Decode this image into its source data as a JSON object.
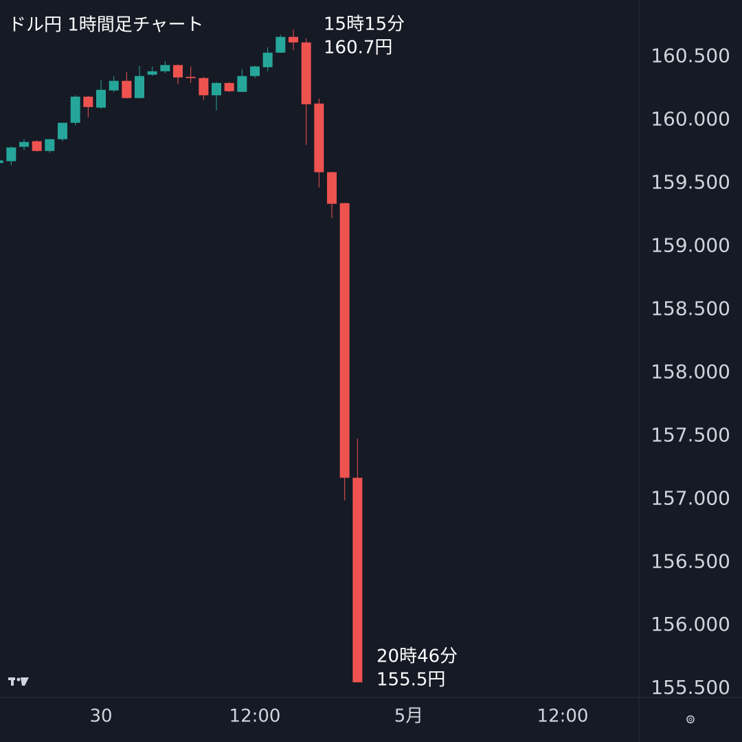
{
  "chart_data": {
    "type": "candlestick",
    "title": "ドル円 1時間足チャート",
    "categories": [
      null,
      null,
      null,
      null,
      null,
      null,
      null,
      null,
      "30",
      null,
      null,
      null,
      null,
      null,
      null,
      null,
      null,
      null,
      null,
      null,
      "12:00",
      null,
      null,
      null,
      null,
      null,
      null,
      null,
      null,
      null,
      null,
      null,
      "5月",
      null,
      null,
      null,
      null,
      null,
      null,
      null,
      null,
      null,
      null,
      null,
      "12:00",
      null,
      null,
      null,
      null,
      null
    ],
    "open": [
      159.66,
      159.674,
      159.788,
      159.832,
      159.755,
      159.848,
      159.978,
      160.185,
      160.098,
      160.234,
      160.31,
      160.174,
      160.359,
      160.386,
      160.435,
      160.342,
      160.332,
      160.196,
      160.293,
      160.223,
      160.348,
      160.418,
      160.533,
      160.658,
      160.614,
      160.13,
      159.587,
      159.342,
      157.168,
      null,
      null,
      null,
      null,
      null,
      null,
      null,
      null,
      null,
      null,
      null,
      null,
      null,
      null,
      null,
      null,
      null,
      null,
      null,
      null,
      null
    ],
    "high": [
      159.69,
      159.79,
      159.848,
      159.84,
      159.85,
      159.98,
      160.196,
      160.19,
      160.315,
      160.348,
      160.38,
      160.429,
      160.424,
      160.467,
      160.44,
      160.424,
      160.342,
      160.3,
      160.3,
      160.402,
      160.43,
      160.576,
      160.674,
      160.717,
      160.647,
      160.168,
      159.59,
      159.345,
      157.478,
      null,
      null,
      null,
      null,
      null,
      null,
      null,
      null,
      null,
      null,
      null,
      null,
      null,
      null,
      null,
      null,
      null,
      null,
      null,
      null,
      null
    ],
    "low": [
      159.65,
      159.641,
      159.761,
      159.75,
      159.739,
      159.832,
      159.957,
      160.022,
      160.09,
      160.22,
      160.17,
      160.17,
      160.35,
      160.37,
      160.283,
      160.293,
      160.158,
      160.076,
      160.22,
      160.22,
      160.332,
      160.386,
      160.53,
      160.554,
      159.804,
      159.467,
      159.223,
      156.989,
      155.549,
      null,
      null,
      null,
      null,
      null,
      null,
      null,
      null,
      null,
      null,
      null,
      null,
      null,
      null,
      null,
      null,
      null,
      null,
      null,
      null,
      null
    ],
    "close": [
      159.68,
      159.783,
      159.826,
      159.755,
      159.848,
      159.978,
      160.185,
      160.103,
      160.239,
      160.31,
      160.174,
      160.348,
      160.386,
      160.435,
      160.337,
      160.332,
      160.196,
      160.293,
      160.228,
      160.348,
      160.424,
      160.533,
      160.658,
      160.614,
      160.125,
      159.587,
      159.337,
      157.168,
      155.549,
      null,
      null,
      null,
      null,
      null,
      null,
      null,
      null,
      null,
      null,
      null,
      null,
      null,
      null,
      null,
      null,
      null,
      null,
      null,
      null,
      null
    ],
    "up_color": "#26a69a",
    "down_color": "#ef5350",
    "ylim": [
      155.43,
      160.95
    ],
    "yticks": [
      {
        "value": 160.5,
        "label": "160.500"
      },
      {
        "value": 160,
        "label": "160.000"
      },
      {
        "value": 159.5,
        "label": "159.500"
      },
      {
        "value": 159,
        "label": "159.000"
      },
      {
        "value": 158.5,
        "label": "158.500"
      },
      {
        "value": 158,
        "label": "158.000"
      },
      {
        "value": 157.5,
        "label": "157.500"
      },
      {
        "value": 157,
        "label": "157.000"
      },
      {
        "value": 156.5,
        "label": "156.500"
      },
      {
        "value": 156,
        "label": "156.000"
      },
      {
        "value": 155.5,
        "label": "155.500"
      }
    ],
    "annotations": [
      [
        "15時15分",
        "160.7円"
      ],
      [
        "20時46分",
        "155.5円"
      ]
    ]
  }
}
